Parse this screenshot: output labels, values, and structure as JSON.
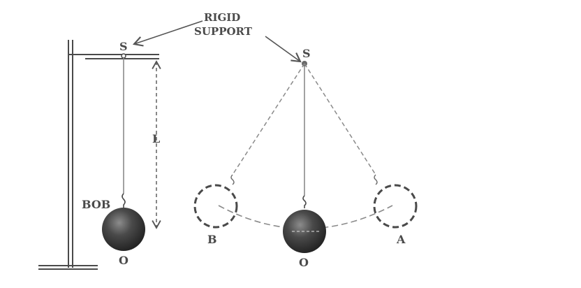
{
  "labels": {
    "rigid_support_line1": "RIGID",
    "rigid_support_line2": "SUPPORT",
    "left_support_point": "S",
    "right_support_point": "S",
    "length": "L",
    "bob": "BOB",
    "left_mean_position": "O",
    "right_mean_position": "O",
    "extreme_a": "A",
    "extreme_b": "B"
  },
  "colors": {
    "stroke": "#4a4a4a",
    "string": "#8a8a8a",
    "dashed": "#8a8a8a",
    "bob_dark": "#2b2b2b",
    "bob_light": "#9a9a9a"
  }
}
